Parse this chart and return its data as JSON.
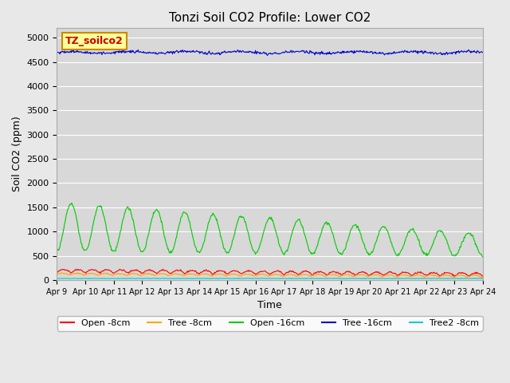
{
  "title": "Tonzi Soil CO2 Profile: Lower CO2",
  "xlabel": "Time",
  "ylabel": "Soil CO2 (ppm)",
  "background_color": "#e8e8e8",
  "plot_bg_color": "#d8d8d8",
  "ylim": [
    0,
    5200
  ],
  "yticks": [
    0,
    500,
    1000,
    1500,
    2000,
    2500,
    3000,
    3500,
    4000,
    4500,
    5000
  ],
  "x_tick_labels": [
    "Apr 9",
    "Apr 10",
    "Apr 11",
    "Apr 12",
    "Apr 13",
    "Apr 14",
    "Apr 15",
    "Apr 16",
    "Apr 17",
    "Apr 18",
    "Apr 19",
    "Apr 20",
    "Apr 21",
    "Apr 22",
    "Apr 23",
    "Apr 24"
  ],
  "series": {
    "open_8cm": {
      "color": "#ff0000",
      "label": "Open -8cm",
      "base": 150,
      "amp": 70,
      "trend": -0.005
    },
    "tree_8cm": {
      "color": "#ffa500",
      "label": "Tree -8cm",
      "base": 100,
      "amp": 40,
      "trend": -0.003
    },
    "open_16cm": {
      "color": "#00cc00",
      "label": "Open -16cm",
      "base": 900,
      "amp": 700,
      "trend": -0.04
    },
    "tree_16cm": {
      "color": "#0000cc",
      "label": "Tree -16cm",
      "base": 4700,
      "amp": 30,
      "trend": 0.0
    },
    "tree2_8cm": {
      "color": "#00cccc",
      "label": "Tree2 -8cm",
      "base": 30,
      "amp": 10,
      "trend": 0.0
    }
  },
  "legend_label": "TZ_soilco2",
  "legend_bg": "#ffff99",
  "legend_border": "#cc8800"
}
